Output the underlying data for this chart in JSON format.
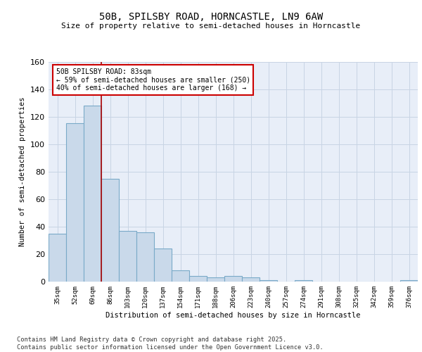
{
  "title": "50B, SPILSBY ROAD, HORNCASTLE, LN9 6AW",
  "subtitle": "Size of property relative to semi-detached houses in Horncastle",
  "xlabel": "Distribution of semi-detached houses by size in Horncastle",
  "ylabel": "Number of semi-detached properties",
  "categories": [
    "35sqm",
    "52sqm",
    "69sqm",
    "86sqm",
    "103sqm",
    "120sqm",
    "137sqm",
    "154sqm",
    "171sqm",
    "188sqm",
    "206sqm",
    "223sqm",
    "240sqm",
    "257sqm",
    "274sqm",
    "291sqm",
    "308sqm",
    "325sqm",
    "342sqm",
    "359sqm",
    "376sqm"
  ],
  "values": [
    35,
    115,
    128,
    75,
    37,
    36,
    24,
    8,
    4,
    3,
    4,
    3,
    1,
    0,
    1,
    0,
    0,
    0,
    0,
    0,
    1
  ],
  "bar_color": "#c9d9ea",
  "bar_edge_color": "#7aaac8",
  "property_line_x": 2.5,
  "red_line_color": "#aa0000",
  "annotation_title": "50B SPILSBY ROAD: 83sqm",
  "annotation_line1": "← 59% of semi-detached houses are smaller (250)",
  "annotation_line2": "40% of semi-detached houses are larger (168) →",
  "annotation_box_color": "#ffffff",
  "annotation_box_edge": "#cc0000",
  "grid_color": "#c8d4e4",
  "bg_color": "#e8eef8",
  "ylim": [
    0,
    160
  ],
  "yticks": [
    0,
    20,
    40,
    60,
    80,
    100,
    120,
    140,
    160
  ],
  "footer": "Contains HM Land Registry data © Crown copyright and database right 2025.\nContains public sector information licensed under the Open Government Licence v3.0."
}
